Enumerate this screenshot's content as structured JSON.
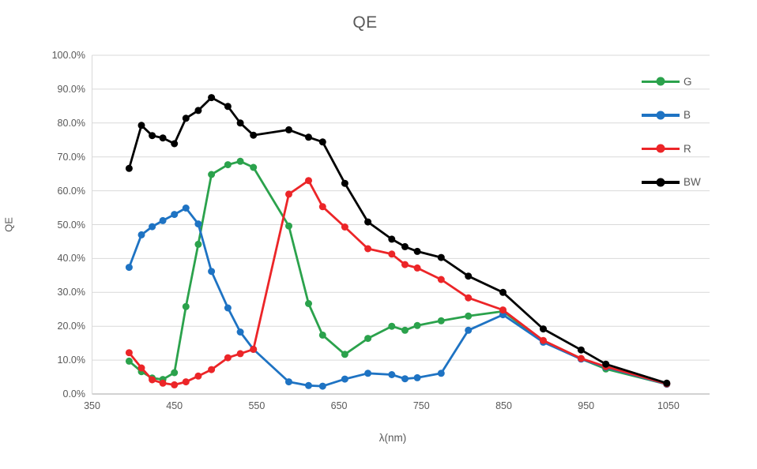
{
  "chart_data": {
    "type": "line",
    "title": "QE",
    "xlabel": "λ(nm)",
    "ylabel": "QE",
    "grid": true,
    "legend_position": "right",
    "xlim": [
      350,
      1100
    ],
    "ylim": [
      0,
      100
    ],
    "x_ticks": [
      350,
      450,
      550,
      650,
      750,
      850,
      950,
      1050
    ],
    "x_tick_labels": [
      "350",
      "450",
      "550",
      "650",
      "750",
      "850",
      "950",
      "1050"
    ],
    "y_ticks": [
      0,
      10,
      20,
      30,
      40,
      50,
      60,
      70,
      80,
      90,
      100
    ],
    "y_tick_labels": [
      "0.0%",
      "10.0%",
      "20.0%",
      "30.0%",
      "40.0%",
      "50.0%",
      "60.0%",
      "70.0%",
      "80.0%",
      "90.0%",
      "100.0%"
    ],
    "unit": "percent QE",
    "x": [
      395,
      410,
      423,
      436,
      450,
      464,
      479,
      495,
      515,
      530,
      546,
      589,
      613,
      630,
      657,
      685,
      714,
      730,
      745,
      774,
      807,
      849,
      898,
      944,
      974,
      1048
    ],
    "series": [
      {
        "name": "G",
        "color": "#2BA24C",
        "values": [
          9.7,
          6.6,
          4.7,
          4.3,
          6.3,
          25.8,
          44.2,
          64.8,
          67.7,
          68.7,
          66.9,
          49.6,
          26.7,
          17.4,
          11.7,
          16.4,
          20.0,
          18.8,
          20.2,
          21.6,
          23.0,
          24.4,
          15.6,
          10.4,
          7.4,
          2.9
        ]
      },
      {
        "name": "B",
        "color": "#1E73C3",
        "values": [
          37.4,
          47.0,
          49.4,
          51.2,
          53.0,
          54.9,
          50.2,
          36.2,
          25.4,
          18.3,
          13.2,
          3.6,
          2.5,
          2.3,
          4.4,
          6.1,
          5.7,
          4.5,
          4.8,
          6.1,
          18.8,
          23.4,
          15.3,
          10.3,
          7.9,
          2.9
        ]
      },
      {
        "name": "R",
        "color": "#EC2528",
        "values": [
          12.2,
          7.7,
          4.2,
          3.2,
          2.7,
          3.6,
          5.3,
          7.2,
          10.7,
          11.9,
          13.2,
          59.0,
          63.0,
          55.3,
          49.3,
          42.9,
          41.3,
          38.2,
          37.2,
          33.8,
          28.4,
          24.8,
          15.8,
          10.5,
          8.1,
          3.0
        ]
      },
      {
        "name": "BW",
        "color": "#000000",
        "values": [
          66.6,
          79.3,
          76.3,
          75.6,
          73.9,
          81.4,
          83.7,
          87.5,
          84.9,
          80.0,
          76.4,
          78.0,
          75.8,
          74.4,
          62.2,
          50.8,
          45.7,
          43.5,
          42.1,
          40.3,
          34.8,
          30.0,
          19.2,
          13.0,
          8.8,
          3.2
        ]
      }
    ]
  },
  "colors": {
    "gridline": "#D9D9D9",
    "axis_line": "#A6A6A6",
    "text": "#595959",
    "background": "#FFFFFF"
  }
}
